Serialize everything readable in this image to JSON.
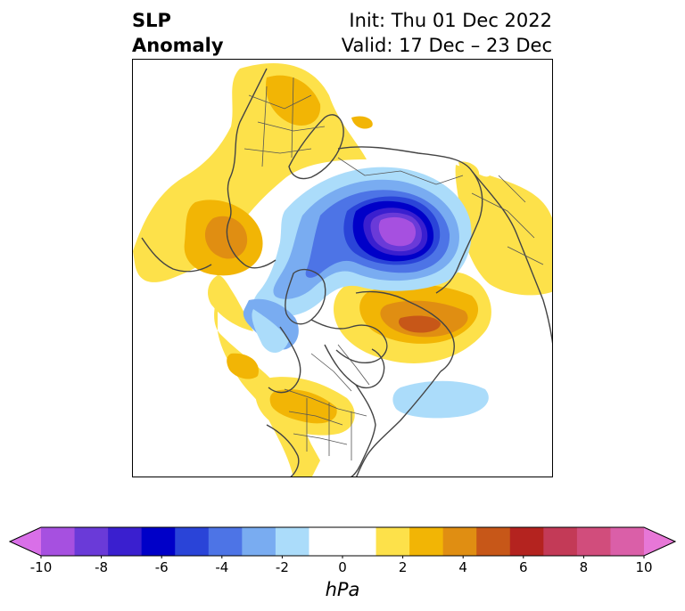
{
  "header": {
    "title_line1": "SLP",
    "title_line2": "Anomaly",
    "init_text": "Init: Thu 01 Dec 2022",
    "valid_text": "Valid: 17 Dec – 23 Dec"
  },
  "colorbar": {
    "units": "hPa",
    "tick_labels": [
      "-10",
      "-8",
      "-6",
      "-4",
      "-2",
      "0",
      "2",
      "4",
      "6",
      "8",
      "10"
    ],
    "range": [
      -10,
      10
    ],
    "bin_width": 1,
    "extend": "both",
    "colors": [
      "#d96fe8",
      "#a650e0",
      "#6a3ad8",
      "#3a1fcf",
      "#0000c8",
      "#2a44d8",
      "#4d74e6",
      "#79acf1",
      "#abdcfa",
      "#ffffff",
      "#ffffff",
      "#fde14a",
      "#f2b505",
      "#e08e12",
      "#c75718",
      "#b4231f",
      "#c33a57",
      "#d14d7c",
      "#da5fa8",
      "#e777d7"
    ]
  },
  "map": {
    "projection": "north-polar-stereographic",
    "field": "SLP anomaly",
    "features": [
      "coastlines",
      "country-borders",
      "state-province-borders"
    ]
  }
}
